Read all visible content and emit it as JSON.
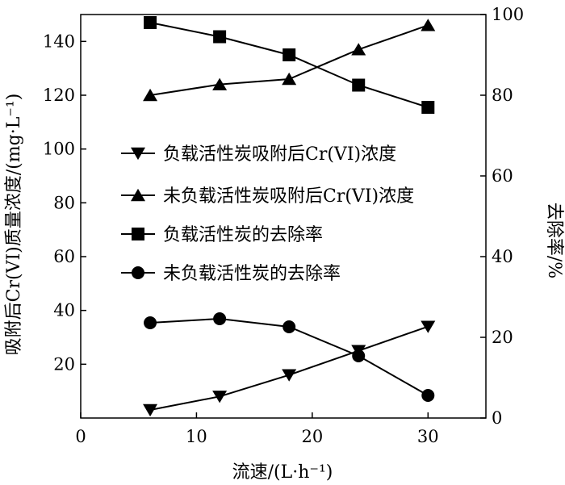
{
  "chart_data": {
    "type": "line",
    "xlabel": "流速/(L·h⁻¹)",
    "ylabel": "吸附后Cr(VI)质量浓度/(mg·L⁻¹)",
    "y2label": "去除率/%",
    "xlim": [
      0,
      35
    ],
    "ylim": [
      0,
      150
    ],
    "y2lim": [
      0,
      100
    ],
    "xticks": [
      0,
      10,
      20,
      30
    ],
    "yticks": [
      20,
      40,
      60,
      80,
      100,
      120,
      140
    ],
    "y2ticks": [
      0,
      20,
      40,
      60,
      80,
      100
    ],
    "x": [
      6,
      12,
      18,
      24,
      30
    ],
    "legend_position": "center-left",
    "grid": false,
    "series": [
      {
        "name": "负载活性炭吸附后Cr(VI)浓度",
        "axis": "left",
        "marker": "triangle-down",
        "values": [
          3,
          8,
          16,
          25,
          34
        ]
      },
      {
        "name": "未负载活性炭吸附后Cr(VI)浓度",
        "axis": "left",
        "marker": "triangle-up",
        "values": [
          120,
          124,
          126,
          137,
          146
        ]
      },
      {
        "name": "负载活性炭的去除率",
        "axis": "right",
        "marker": "square",
        "values": [
          98,
          94.5,
          90,
          82.5,
          77
        ]
      },
      {
        "name": "未负载活性炭的去除率",
        "axis": "right",
        "marker": "circle",
        "values": [
          23.6,
          24.6,
          22.6,
          15.4,
          5.6
        ]
      }
    ]
  }
}
